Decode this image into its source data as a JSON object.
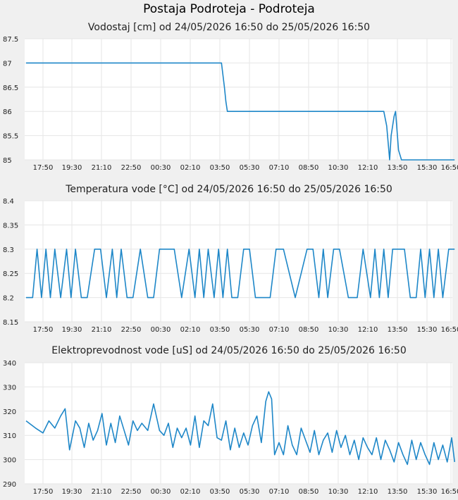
{
  "page_title": "Postaja Podroteja - Podroteja",
  "x_ticks": [
    "17:50",
    "19:30",
    "21:10",
    "22:50",
    "00:30",
    "02:10",
    "03:50",
    "05:30",
    "07:10",
    "08:50",
    "10:30",
    "12:10",
    "13:50",
    "15:30",
    "16:50"
  ],
  "colors": {
    "line": "#1e87c8",
    "grid": "#e6e6e6",
    "plot_bg": "#ffffff",
    "page_bg": "#f0f0f0"
  },
  "chart_data": [
    {
      "type": "line",
      "title": "Vodostaj [cm] od 24/05/2026 16:50 do 25/05/2026 16:50",
      "ylim": [
        85,
        87.5
      ],
      "y_ticks": [
        "87.5",
        "87",
        "86.5",
        "86",
        "85.5",
        "85"
      ],
      "y_tick_values": [
        87.5,
        87,
        86.5,
        86,
        85.5,
        85
      ],
      "x_ticks": [
        "17:50",
        "19:30",
        "21:10",
        "22:50",
        "00:30",
        "02:10",
        "03:50",
        "05:30",
        "07:10",
        "08:50",
        "10:30",
        "12:10",
        "13:50",
        "15:30",
        "16:50"
      ],
      "series": [
        {
          "x": [
            0,
            6.6,
            6.7,
            6.75,
            6.8,
            12.1,
            12.2,
            12.3,
            12.35,
            12.45,
            12.5,
            12.55,
            12.6,
            12.7,
            14.5
          ],
          "y": [
            87,
            87,
            86.5,
            86.2,
            86,
            86,
            85.7,
            85,
            85.5,
            85.9,
            86,
            85.6,
            85.2,
            85,
            85
          ]
        }
      ]
    },
    {
      "type": "line",
      "title": "Temperatura vode [°C] od 24/05/2026 16:50 do 25/05/2026 16:50",
      "ylim": [
        8.15,
        8.4
      ],
      "y_ticks": [
        "8.4",
        "8.35",
        "8.3",
        "8.25",
        "8.2",
        "8.15"
      ],
      "y_tick_values": [
        8.4,
        8.35,
        8.3,
        8.25,
        8.2,
        8.15
      ],
      "x_ticks": [
        "17:50",
        "19:30",
        "21:10",
        "22:50",
        "00:30",
        "02:10",
        "03:50",
        "05:30",
        "07:10",
        "08:50",
        "10:30",
        "12:10",
        "13:50",
        "15:30",
        "16:50"
      ],
      "series": [
        {
          "x": [
            0,
            0.2,
            0.35,
            0.5,
            0.65,
            0.8,
            0.95,
            1.15,
            1.35,
            1.5,
            1.65,
            1.85,
            2.05,
            2.3,
            2.5,
            2.7,
            2.9,
            3.05,
            3.2,
            3.4,
            3.6,
            3.85,
            4.1,
            4.3,
            4.5,
            5.0,
            5.25,
            5.5,
            5.7,
            5.85,
            6.0,
            6.15,
            6.35,
            6.5,
            6.65,
            6.8,
            6.95,
            7.15,
            7.35,
            7.55,
            7.75,
            8.0,
            8.25,
            8.45,
            8.7,
            9.1,
            9.5,
            9.7,
            9.9,
            10.05,
            10.2,
            10.4,
            10.6,
            10.9,
            11.2,
            11.4,
            11.65,
            11.8,
            11.95,
            12.1,
            12.25,
            12.4,
            12.6,
            12.8,
            13.0,
            13.2,
            13.35,
            13.5,
            13.65,
            13.8,
            13.95,
            14.1,
            14.3,
            14.5
          ],
          "y": [
            8.2,
            8.2,
            8.3,
            8.2,
            8.3,
            8.2,
            8.3,
            8.2,
            8.3,
            8.2,
            8.3,
            8.2,
            8.2,
            8.3,
            8.3,
            8.2,
            8.3,
            8.2,
            8.3,
            8.2,
            8.2,
            8.3,
            8.2,
            8.2,
            8.3,
            8.3,
            8.2,
            8.3,
            8.2,
            8.3,
            8.2,
            8.3,
            8.2,
            8.3,
            8.2,
            8.3,
            8.2,
            8.2,
            8.3,
            8.3,
            8.2,
            8.2,
            8.2,
            8.3,
            8.3,
            8.2,
            8.3,
            8.3,
            8.2,
            8.3,
            8.2,
            8.3,
            8.3,
            8.2,
            8.2,
            8.3,
            8.2,
            8.3,
            8.2,
            8.3,
            8.2,
            8.3,
            8.3,
            8.3,
            8.2,
            8.2,
            8.3,
            8.2,
            8.3,
            8.2,
            8.3,
            8.2,
            8.3,
            8.3
          ]
        }
      ]
    },
    {
      "type": "line",
      "title": "Elektroprevodnost vode [uS] od 24/05/2026 16:50 do 25/05/2026 16:50",
      "ylim": [
        290,
        340
      ],
      "y_ticks": [
        "340",
        "330",
        "320",
        "310",
        "300",
        "290"
      ],
      "y_tick_values": [
        340,
        330,
        320,
        310,
        300,
        290
      ],
      "x_ticks": [
        "17:50",
        "19:30",
        "21:10",
        "22:50",
        "00:30",
        "02:10",
        "03:50",
        "05:30",
        "07:10",
        "08:50",
        "10:30",
        "12:10",
        "13:50",
        "15:30",
        "16:50"
      ],
      "series": [
        {
          "x": [
            0,
            0.3,
            0.55,
            0.75,
            0.95,
            1.15,
            1.3,
            1.45,
            1.65,
            1.8,
            1.95,
            2.1,
            2.25,
            2.4,
            2.55,
            2.7,
            2.85,
            3.0,
            3.15,
            3.3,
            3.45,
            3.6,
            3.75,
            3.9,
            4.1,
            4.3,
            4.5,
            4.65,
            4.8,
            4.95,
            5.1,
            5.25,
            5.4,
            5.55,
            5.7,
            5.85,
            6.0,
            6.15,
            6.3,
            6.45,
            6.6,
            6.75,
            6.9,
            7.05,
            7.2,
            7.35,
            7.5,
            7.65,
            7.8,
            7.95,
            8.1,
            8.2,
            8.3,
            8.4,
            8.55,
            8.7,
            8.85,
            9.0,
            9.15,
            9.3,
            9.45,
            9.6,
            9.75,
            9.9,
            10.05,
            10.2,
            10.35,
            10.5,
            10.65,
            10.8,
            10.95,
            11.1,
            11.25,
            11.4,
            11.55,
            11.7,
            11.85,
            12.0,
            12.15,
            12.3,
            12.45,
            12.6,
            12.75,
            12.9,
            13.05,
            13.2,
            13.35,
            13.5,
            13.65,
            13.8,
            13.95,
            14.1,
            14.25,
            14.4,
            14.5
          ],
          "y": [
            316,
            313,
            311,
            316,
            313,
            318,
            321,
            304,
            316,
            313,
            305,
            315,
            308,
            312,
            319,
            306,
            315,
            307,
            318,
            312,
            306,
            316,
            312,
            315,
            312,
            323,
            312,
            310,
            315,
            305,
            313,
            309,
            313,
            306,
            318,
            305,
            316,
            314,
            323,
            309,
            308,
            316,
            304,
            313,
            305,
            311,
            306,
            314,
            318,
            307,
            324,
            328,
            325,
            302,
            307,
            302,
            314,
            306,
            302,
            313,
            308,
            303,
            312,
            302,
            308,
            311,
            303,
            312,
            305,
            310,
            302,
            308,
            300,
            309,
            305,
            302,
            309,
            300,
            308,
            304,
            299,
            307,
            302,
            298,
            308,
            300,
            307,
            302,
            298,
            307,
            300,
            306,
            299,
            309,
            299
          ]
        }
      ]
    }
  ]
}
